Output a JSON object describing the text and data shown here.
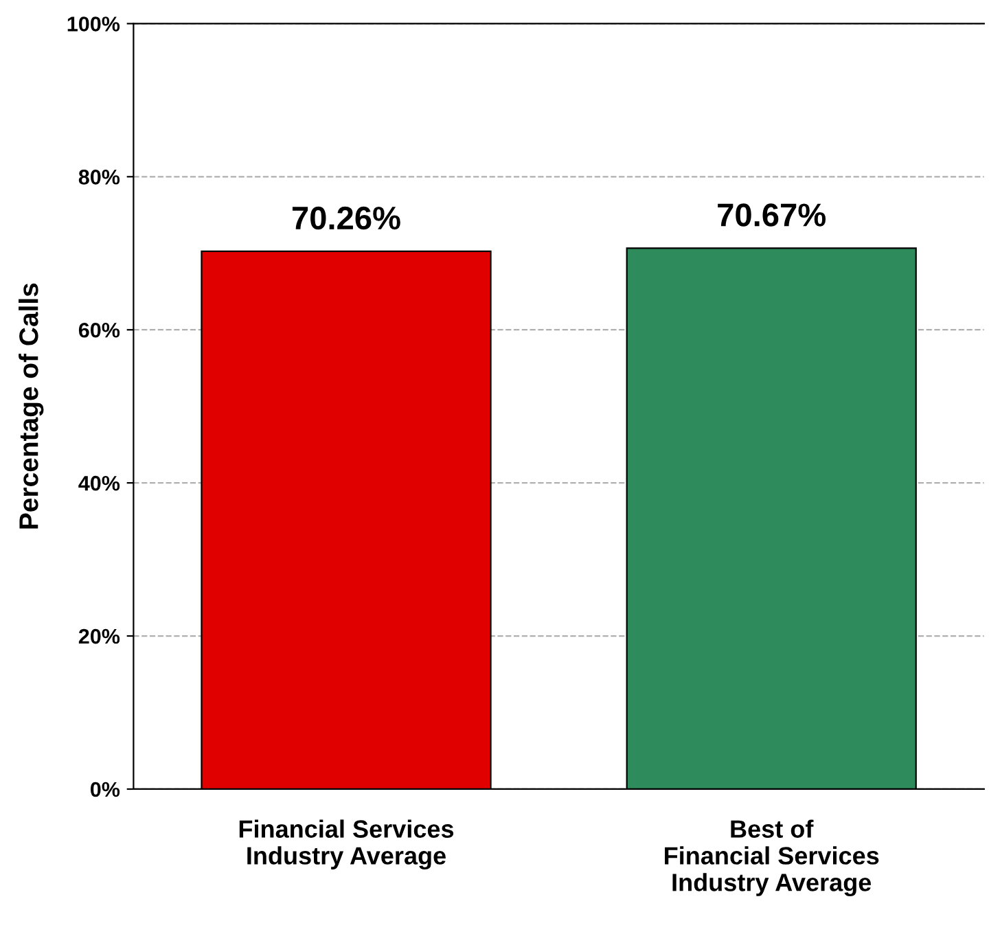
{
  "chart_data": {
    "type": "bar",
    "ylabel": "Percentage of Calls",
    "categories": [
      "Financial Services\nIndustry Average",
      "Best of\nFinancial Services\nIndustry Average"
    ],
    "values": [
      70.26,
      70.67
    ],
    "colors": [
      "#e00000",
      "#2e8b5c"
    ],
    "value_labels": [
      "70.26%",
      "70.67%"
    ],
    "ylim": [
      0,
      100
    ],
    "yticks": [
      {
        "value": 0,
        "label": "0%"
      },
      {
        "value": 20,
        "label": "20%"
      },
      {
        "value": 40,
        "label": "40%"
      },
      {
        "value": 60,
        "label": "60%"
      },
      {
        "value": 80,
        "label": "80%"
      },
      {
        "value": 100,
        "label": "100%"
      }
    ],
    "grid": "y",
    "line_style": "dashed"
  }
}
